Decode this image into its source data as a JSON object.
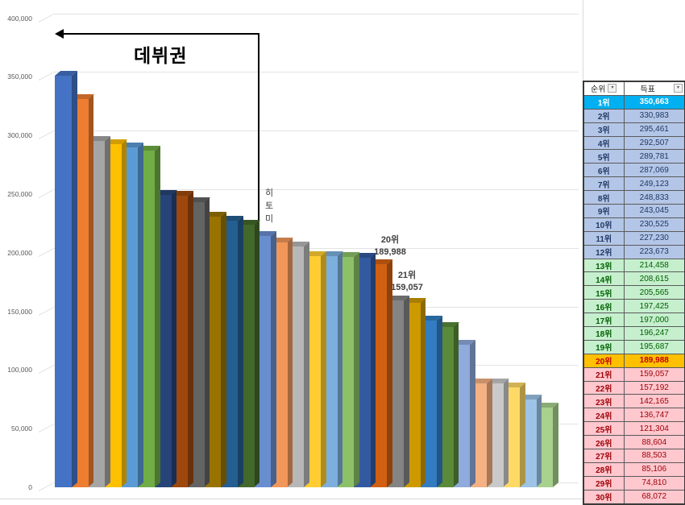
{
  "chart_data": {
    "type": "bar",
    "title": "",
    "xlabel": "",
    "ylabel": "",
    "ylim": [
      0,
      400000
    ],
    "grid": true,
    "legend": "none",
    "style": "3d-clustered-column",
    "y_ticks": [
      "0",
      "50,000",
      "100,000",
      "150,000",
      "200,000",
      "250,000",
      "300,000",
      "350,000",
      "400,000"
    ],
    "categories": [
      "1위",
      "2위",
      "3위",
      "4위",
      "5위",
      "6위",
      "7위",
      "8위",
      "9위",
      "10위",
      "11위",
      "12위",
      "13위",
      "14위",
      "15위",
      "16위",
      "17위",
      "18위",
      "19위",
      "20위",
      "21위",
      "22위",
      "23위",
      "24위",
      "25위",
      "26위",
      "27위",
      "28위",
      "29위",
      "30위"
    ],
    "values": [
      350663,
      330983,
      295461,
      292507,
      289781,
      287069,
      249123,
      248833,
      243045,
      230525,
      227230,
      223673,
      214458,
      208615,
      205565,
      197425,
      197000,
      196247,
      195687,
      189988,
      159057,
      157192,
      142165,
      136747,
      121304,
      88604,
      88503,
      85106,
      74810,
      68072
    ],
    "bar_colors": [
      "#4472C4",
      "#ED7D31",
      "#A5A5A5",
      "#FFC000",
      "#5B9BD5",
      "#70AD47",
      "#264478",
      "#9E480E",
      "#636363",
      "#997300",
      "#255E91",
      "#43682B",
      "#698ED0",
      "#F1975A",
      "#B7B7B7",
      "#FFCD33",
      "#7CAFDD",
      "#8CC168",
      "#335AA1",
      "#D26012",
      "#848484",
      "#CC9A00",
      "#327DC2",
      "#5A8A39",
      "#8FAADC",
      "#F4B183",
      "#C9C9C9",
      "#FFD966",
      "#9DC3E6",
      "#A9D18E"
    ],
    "annotations": [
      {
        "text": "데뷔권",
        "type": "arrow-label"
      },
      {
        "text": "히토미",
        "type": "vertical-label"
      },
      {
        "text": "20위\n189,988",
        "bar_index": 19
      },
      {
        "text": "21위\n159,057",
        "bar_index": 20
      }
    ]
  },
  "annotations": {
    "debut_zone": "데뷔권",
    "hitomi": [
      "히",
      "토",
      "미"
    ],
    "rank20_label": "20위",
    "rank20_value": "189,988",
    "rank21_label": "21위",
    "rank21_value": "159,057"
  },
  "table": {
    "headers": {
      "rank": "순위",
      "votes": "득표"
    },
    "filter_icon": "▾",
    "rows": [
      {
        "rank": "1위",
        "votes": "350,663",
        "group": "first"
      },
      {
        "rank": "2위",
        "votes": "330,983",
        "group": "blue"
      },
      {
        "rank": "3위",
        "votes": "295,461",
        "group": "blue"
      },
      {
        "rank": "4위",
        "votes": "292,507",
        "group": "blue"
      },
      {
        "rank": "5위",
        "votes": "289,781",
        "group": "blue"
      },
      {
        "rank": "6위",
        "votes": "287,069",
        "group": "blue"
      },
      {
        "rank": "7위",
        "votes": "249,123",
        "group": "blue"
      },
      {
        "rank": "8위",
        "votes": "248,833",
        "group": "blue"
      },
      {
        "rank": "9위",
        "votes": "243,045",
        "group": "blue"
      },
      {
        "rank": "10위",
        "votes": "230,525",
        "group": "blue"
      },
      {
        "rank": "11위",
        "votes": "227,230",
        "group": "blue"
      },
      {
        "rank": "12위",
        "votes": "223,673",
        "group": "blue"
      },
      {
        "rank": "13위",
        "votes": "214,458",
        "group": "green"
      },
      {
        "rank": "14위",
        "votes": "208,615",
        "group": "green"
      },
      {
        "rank": "15위",
        "votes": "205,565",
        "group": "green"
      },
      {
        "rank": "16위",
        "votes": "197,425",
        "group": "green"
      },
      {
        "rank": "17위",
        "votes": "197,000",
        "group": "green"
      },
      {
        "rank": "18위",
        "votes": "196,247",
        "group": "green"
      },
      {
        "rank": "19위",
        "votes": "195,687",
        "group": "green"
      },
      {
        "rank": "20위",
        "votes": "189,988",
        "group": "orange"
      },
      {
        "rank": "21위",
        "votes": "159,057",
        "group": "pink"
      },
      {
        "rank": "22위",
        "votes": "157,192",
        "group": "pink"
      },
      {
        "rank": "23위",
        "votes": "142,165",
        "group": "pink"
      },
      {
        "rank": "24위",
        "votes": "136,747",
        "group": "pink"
      },
      {
        "rank": "25위",
        "votes": "121,304",
        "group": "pink"
      },
      {
        "rank": "26위",
        "votes": "88,604",
        "group": "pink"
      },
      {
        "rank": "27위",
        "votes": "88,503",
        "group": "pink"
      },
      {
        "rank": "28위",
        "votes": "85,106",
        "group": "pink"
      },
      {
        "rank": "29위",
        "votes": "74,810",
        "group": "pink"
      },
      {
        "rank": "30위",
        "votes": "68,072",
        "group": "pink"
      }
    ],
    "group_colors": {
      "first": {
        "bg": "#00B0F0",
        "fg": "#FFFFFF"
      },
      "blue": {
        "bg": "#B4C6E7",
        "fg": "#1F3864"
      },
      "green": {
        "bg": "#C6EFCE",
        "fg": "#006100"
      },
      "orange": {
        "bg": "#FFC000",
        "fg": "#C00000"
      },
      "pink": {
        "bg": "#FFC7CE",
        "fg": "#9C0006"
      }
    }
  }
}
